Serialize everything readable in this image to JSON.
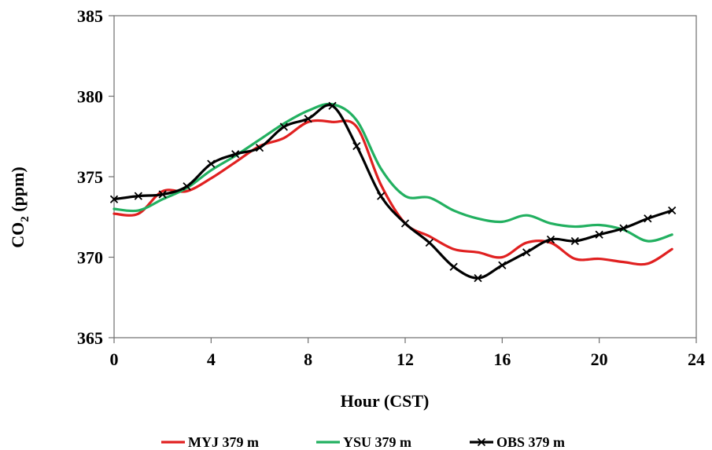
{
  "chart_data": {
    "type": "line",
    "xlabel": "Hour (CST)",
    "ylabel_main": "CO",
    "ylabel_sub": "2",
    "ylabel_tail": " (ppm)",
    "xlim": [
      0,
      24
    ],
    "ylim": [
      365,
      385
    ],
    "xticks": [
      0,
      4,
      8,
      12,
      16,
      20,
      24
    ],
    "yticks": [
      365,
      370,
      375,
      380,
      385
    ],
    "grid": false,
    "legend_position": "bottom",
    "series": [
      {
        "name": "MYJ 379 m",
        "color": "#e02020",
        "marker": "none",
        "x": [
          0,
          1,
          2,
          3,
          4,
          5,
          6,
          7,
          8,
          9,
          10,
          11,
          12,
          13,
          14,
          15,
          16,
          17,
          18,
          19,
          20,
          21,
          22,
          23
        ],
        "y": [
          372.7,
          372.7,
          374.1,
          374.1,
          374.9,
          375.9,
          376.9,
          377.4,
          378.4,
          378.4,
          378.1,
          374.5,
          372.1,
          371.3,
          370.5,
          370.3,
          370.0,
          370.9,
          370.9,
          369.9,
          369.9,
          369.7,
          369.6,
          370.5
        ]
      },
      {
        "name": "YSU 379 m",
        "color": "#22b060",
        "marker": "none",
        "x": [
          0,
          1,
          2,
          3,
          4,
          5,
          6,
          7,
          8,
          9,
          10,
          11,
          12,
          13,
          14,
          15,
          16,
          17,
          18,
          19,
          20,
          21,
          22,
          23
        ],
        "y": [
          373.0,
          372.9,
          373.6,
          374.3,
          375.4,
          376.3,
          377.3,
          378.3,
          379.1,
          379.5,
          378.5,
          375.5,
          373.8,
          373.7,
          372.9,
          372.4,
          372.2,
          372.6,
          372.1,
          371.9,
          372.0,
          371.7,
          371.0,
          371.4
        ]
      },
      {
        "name": "OBS 379 m",
        "color": "#000000",
        "marker": "x",
        "x": [
          0,
          1,
          2,
          3,
          4,
          5,
          6,
          7,
          8,
          9,
          10,
          11,
          12,
          13,
          14,
          15,
          16,
          17,
          18,
          19,
          20,
          21,
          22,
          23
        ],
        "y": [
          373.6,
          373.8,
          373.9,
          374.4,
          375.8,
          376.4,
          376.8,
          378.1,
          378.6,
          379.4,
          376.9,
          373.8,
          372.1,
          370.9,
          369.4,
          368.7,
          369.5,
          370.3,
          371.1,
          371.0,
          371.4,
          371.8,
          372.4,
          372.9
        ]
      }
    ]
  }
}
